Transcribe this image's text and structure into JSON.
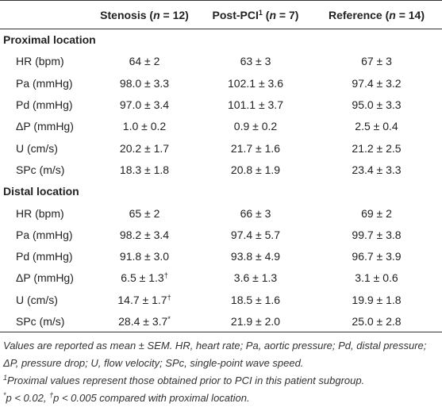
{
  "table": {
    "header": [
      [
        {
          "text": "Stenosis ("
        },
        {
          "text": "n",
          "style": "italic"
        },
        {
          "text": " = 12)"
        }
      ],
      [
        {
          "text": "Post-PCI"
        },
        {
          "text": "1",
          "style": "sup"
        },
        {
          "text": " ("
        },
        {
          "text": "n",
          "style": "italic"
        },
        {
          "text": " = 7)"
        }
      ],
      [
        {
          "text": "Reference ("
        },
        {
          "text": "n",
          "style": "italic"
        },
        {
          "text": " = 14)"
        }
      ]
    ],
    "sections": [
      {
        "title": "Proximal location",
        "rows": [
          {
            "label": "HR (bpm)",
            "cells": [
              "64 ± 2",
              "63 ± 3",
              "67 ± 3"
            ]
          },
          {
            "label": "Pa (mmHg)",
            "cells": [
              "98.0 ± 3.3",
              "102.1 ± 3.6",
              "97.4 ± 3.2"
            ]
          },
          {
            "label": "Pd (mmHg)",
            "cells": [
              "97.0 ± 3.4",
              "101.1 ± 3.7",
              "95.0 ± 3.3"
            ]
          },
          {
            "label": "ΔP (mmHg)",
            "cells": [
              "1.0 ± 0.2",
              "0.9 ± 0.2",
              "2.5 ± 0.4"
            ]
          },
          {
            "label": "U (cm/s)",
            "cells": [
              "20.2 ± 1.7",
              "21.7 ± 1.6",
              "21.2 ± 2.5"
            ]
          },
          {
            "label": "SPc (m/s)",
            "cells": [
              "18.3 ± 1.8",
              "20.8 ± 1.9",
              "23.4 ± 3.3"
            ]
          }
        ]
      },
      {
        "title": "Distal location",
        "rows": [
          {
            "label": "HR (bpm)",
            "cells": [
              "65 ± 2",
              "66 ± 3",
              "69 ± 2"
            ]
          },
          {
            "label": "Pa (mmHg)",
            "cells": [
              "98.2 ± 3.4",
              "97.4 ± 5.7",
              "99.7 ± 3.8"
            ]
          },
          {
            "label": "Pd (mmHg)",
            "cells": [
              "91.8 ± 3.0",
              "93.8 ± 4.9",
              "96.7 ± 3.9"
            ]
          },
          {
            "label": "ΔP (mmHg)",
            "cells": [
              {
                "text": "6.5 ± 1.3",
                "sup": "†"
              },
              "3.6 ± 1.3",
              "3.1 ± 0.6"
            ]
          },
          {
            "label": "U (cm/s)",
            "cells": [
              {
                "text": "14.7 ± 1.7",
                "sup": "†"
              },
              "18.5 ± 1.6",
              "19.9 ± 1.8"
            ]
          },
          {
            "label": "SPc (m/s)",
            "cells": [
              {
                "text": "28.4 ± 3.7",
                "sup": "*"
              },
              "21.9 ± 2.0",
              "25.0 ± 2.8"
            ]
          }
        ]
      }
    ]
  },
  "footnotes": [
    [
      {
        "text": "Values are reported as mean ± SEM. HR, heart rate; Pa, aortic pressure; Pd, distal pressure; ΔP, pressure drop; U, flow velocity; SPc, single-point wave speed."
      }
    ],
    [
      {
        "text": "1",
        "style": "sup"
      },
      {
        "text": "Proximal values represent those obtained prior to PCI in this patient subgroup."
      }
    ],
    [
      {
        "text": "*",
        "style": "sup"
      },
      {
        "text": "p < 0.02, "
      },
      {
        "text": "†",
        "style": "sup"
      },
      {
        "text": "p < 0.005 compared with proximal location."
      }
    ]
  ]
}
